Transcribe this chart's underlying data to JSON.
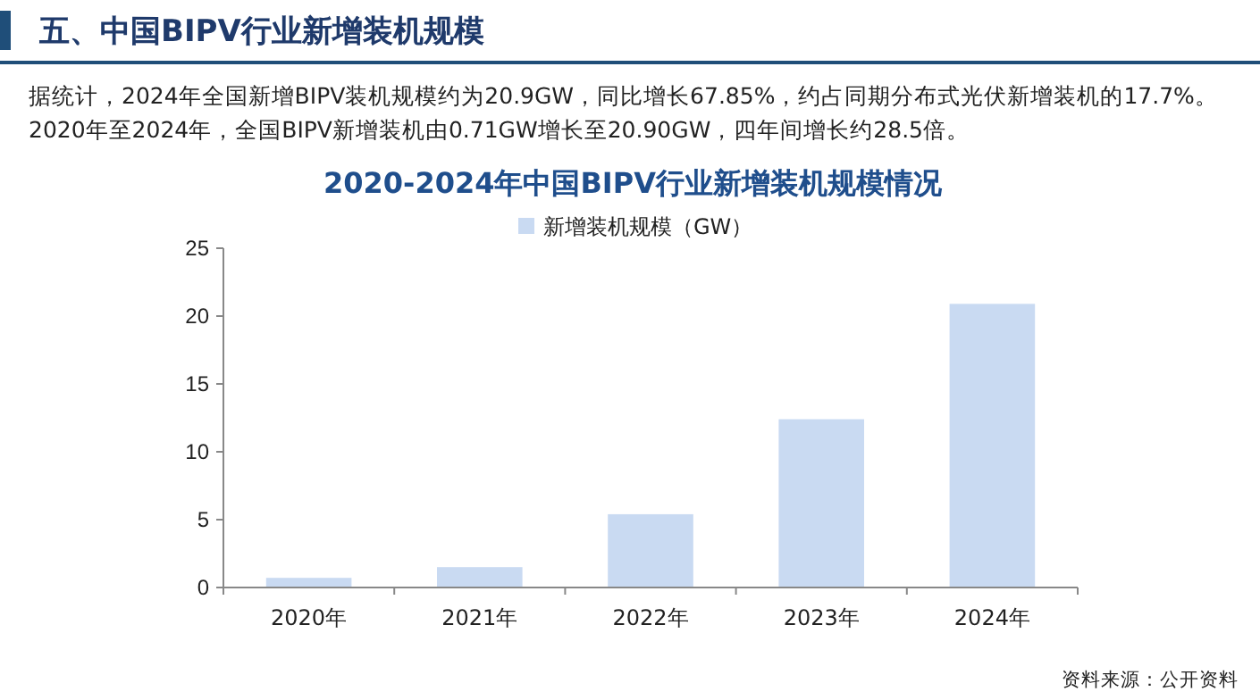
{
  "chart_data": {
    "type": "bar",
    "title": "2020-2024年中国BIPV行业新增装机规模情况",
    "annotations": [
      "五、中国BIPV行业新增装机规模",
      "据统计，2024年全国新增BIPV装机规模约为20.9GW，同比增长67.85%，约占同期分布式光伏新增装机的17.7%。2020年至2024年，全国BIPV新增装机由0.71GW增长至20.90GW，四年间增长约28.5倍。",
      "资料来源：公开资料"
    ],
    "categories": [
      "2020年",
      "2021年",
      "2022年",
      "2023年",
      "2024年"
    ],
    "series": [
      {
        "name": "新增装机规模（GW）",
        "color": "#c9daf2",
        "values": [
          0.71,
          1.5,
          5.4,
          12.4,
          20.9
        ]
      }
    ],
    "ylim": [
      0,
      25
    ],
    "yticks": [
      0,
      5,
      10,
      15,
      20,
      25
    ],
    "legend": "top",
    "grid": false
  }
}
